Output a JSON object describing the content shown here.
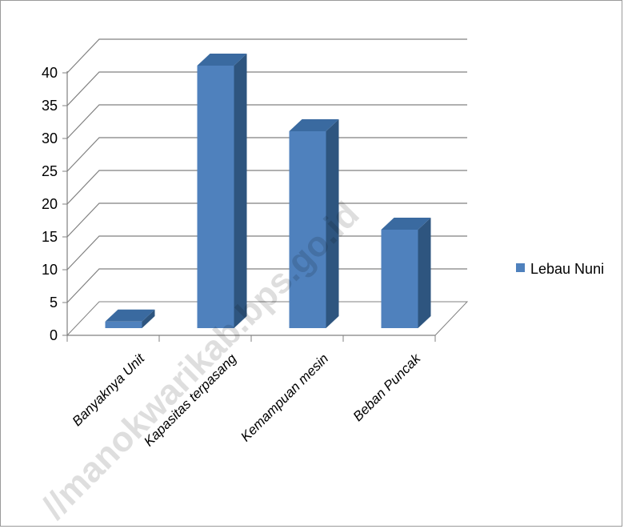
{
  "chart_data": {
    "type": "bar",
    "categories": [
      "Banyaknya Unit",
      "Kapasitas terpasang",
      "Kemampuan mesin",
      "Beban Puncak"
    ],
    "series": [
      {
        "name": "Lebau Nuni",
        "values": [
          1,
          40,
          30,
          15
        ],
        "color": "#4f81bd"
      }
    ],
    "yticks": [
      0,
      5,
      10,
      15,
      20,
      25,
      30,
      35,
      40
    ],
    "ylim": [
      0,
      40
    ],
    "grid": true,
    "three_d": true,
    "legend": "right"
  },
  "watermark": "//manokwarikab.bps.go.id"
}
